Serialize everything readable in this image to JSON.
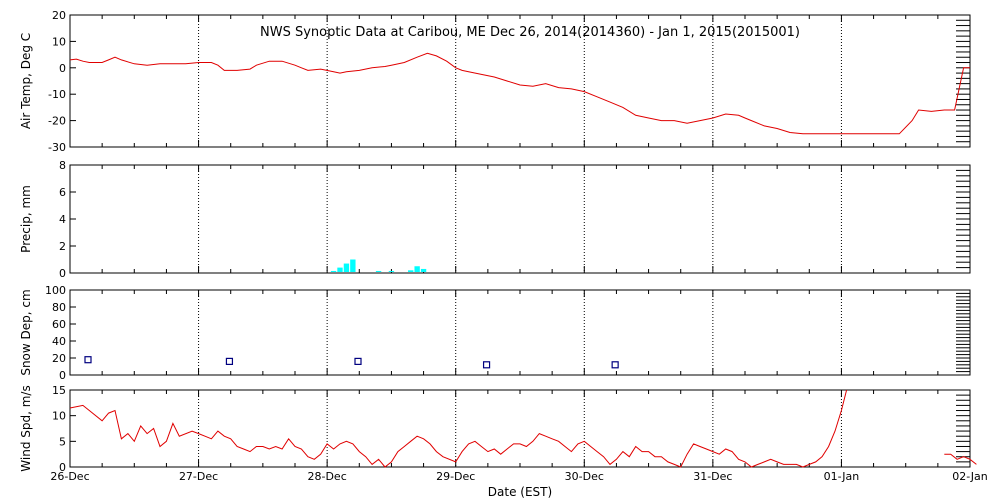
{
  "chart_data": {
    "title": "NWS Synoptic Data at Caribou, ME   Dec 26, 2014(2014360) - Jan  1, 2015(2015001)",
    "xlabel": "Date (EST)",
    "x_range": [
      "2014-12-26",
      "2015-01-02"
    ],
    "x_ticks": [
      "26-Dec",
      "27-Dec",
      "28-Dec",
      "29-Dec",
      "30-Dec",
      "31-Dec",
      "01-Jan",
      "02-Jan"
    ],
    "grid": "dotted vertical at each day",
    "colors": {
      "line": "#e00000",
      "precip": "#00ffff",
      "snow": "#000080"
    },
    "panels": [
      {
        "id": "air-temp",
        "type": "line",
        "ylabel": "Air Temp, Deg C",
        "ylim": [
          -30,
          20
        ],
        "yticks": [
          20,
          10,
          0,
          -10,
          -20,
          -30
        ],
        "points": [
          [
            0,
            3
          ],
          [
            0.05,
            3.3
          ],
          [
            0.1,
            2.5
          ],
          [
            0.15,
            2
          ],
          [
            0.25,
            2
          ],
          [
            0.3,
            3
          ],
          [
            0.35,
            4
          ],
          [
            0.4,
            3
          ],
          [
            0.5,
            1.5
          ],
          [
            0.6,
            1
          ],
          [
            0.7,
            1.5
          ],
          [
            0.75,
            1.5
          ],
          [
            0.8,
            1.5
          ],
          [
            0.9,
            1.5
          ],
          [
            1.0,
            2
          ],
          [
            1.1,
            2
          ],
          [
            1.15,
            1
          ],
          [
            1.2,
            -1
          ],
          [
            1.25,
            -1
          ],
          [
            1.3,
            -1
          ],
          [
            1.4,
            -0.5
          ],
          [
            1.45,
            1
          ],
          [
            1.55,
            2.5
          ],
          [
            1.65,
            2.5
          ],
          [
            1.75,
            1
          ],
          [
            1.8,
            0
          ],
          [
            1.85,
            -1
          ],
          [
            1.95,
            -0.5
          ],
          [
            2.05,
            -1.5
          ],
          [
            2.1,
            -2
          ],
          [
            2.15,
            -1.5
          ],
          [
            2.25,
            -1
          ],
          [
            2.35,
            0
          ],
          [
            2.45,
            0.5
          ],
          [
            2.5,
            1
          ],
          [
            2.6,
            2
          ],
          [
            2.7,
            4
          ],
          [
            2.78,
            5.5
          ],
          [
            2.85,
            4.5
          ],
          [
            2.93,
            2.5
          ],
          [
            3.0,
            0
          ],
          [
            3.05,
            -1
          ],
          [
            3.1,
            -1.5
          ],
          [
            3.2,
            -2.5
          ],
          [
            3.3,
            -3.5
          ],
          [
            3.4,
            -5
          ],
          [
            3.5,
            -6.5
          ],
          [
            3.6,
            -7
          ],
          [
            3.7,
            -6
          ],
          [
            3.8,
            -7.5
          ],
          [
            3.9,
            -8
          ],
          [
            4.0,
            -9
          ],
          [
            4.1,
            -11
          ],
          [
            4.2,
            -13
          ],
          [
            4.3,
            -15
          ],
          [
            4.4,
            -18
          ],
          [
            4.5,
            -19
          ],
          [
            4.6,
            -20
          ],
          [
            4.7,
            -20
          ],
          [
            4.8,
            -21
          ],
          [
            4.9,
            -20
          ],
          [
            5.0,
            -19
          ],
          [
            5.1,
            -17.5
          ],
          [
            5.2,
            -18
          ],
          [
            5.25,
            -19
          ],
          [
            5.3,
            -20
          ],
          [
            5.4,
            -22
          ],
          [
            5.5,
            -23
          ],
          [
            5.6,
            -24.5
          ],
          [
            5.7,
            -25
          ],
          [
            5.8,
            -25
          ],
          [
            6.0,
            -25
          ],
          [
            6.3,
            -25
          ],
          [
            6.45,
            -25
          ],
          [
            6.55,
            -20
          ],
          [
            6.6,
            -16
          ],
          [
            6.7,
            -16.5
          ],
          [
            6.8,
            -16
          ],
          [
            6.88,
            -16
          ],
          [
            6.95,
            0
          ],
          [
            7.0,
            0
          ]
        ]
      },
      {
        "id": "precip",
        "type": "bar",
        "ylabel": "Precip, mm",
        "ylim": [
          0,
          8
        ],
        "yticks": [
          8,
          6,
          4,
          2,
          0
        ],
        "bars": [
          [
            2.05,
            0.15
          ],
          [
            2.1,
            0.4
          ],
          [
            2.15,
            0.7
          ],
          [
            2.2,
            1.0
          ],
          [
            2.4,
            0.15
          ],
          [
            2.5,
            0.15
          ],
          [
            2.65,
            0.2
          ],
          [
            2.7,
            0.5
          ],
          [
            2.75,
            0.3
          ]
        ]
      },
      {
        "id": "snow-depth",
        "type": "scatter",
        "ylabel": "Snow Dep, cm",
        "ylim": [
          0,
          100
        ],
        "yticks": [
          100,
          80,
          60,
          40,
          20,
          0
        ],
        "points": [
          [
            0.14,
            18
          ],
          [
            1.24,
            16
          ],
          [
            2.24,
            16
          ],
          [
            3.24,
            12
          ],
          [
            4.24,
            12
          ]
        ]
      },
      {
        "id": "wind-speed",
        "type": "line",
        "ylabel": "Wind Spd, m/s",
        "ylim": [
          0,
          15
        ],
        "yticks": [
          15,
          10,
          5,
          0
        ],
        "segments": [
          [
            [
              0,
              11.5
            ],
            [
              0.1,
              12
            ],
            [
              0.15,
              11
            ],
            [
              0.25,
              9
            ],
            [
              0.3,
              10.5
            ],
            [
              0.35,
              11
            ],
            [
              0.4,
              5.5
            ],
            [
              0.45,
              6.5
            ],
            [
              0.5,
              5
            ],
            [
              0.55,
              8
            ],
            [
              0.6,
              6.5
            ],
            [
              0.65,
              7.5
            ],
            [
              0.7,
              4
            ],
            [
              0.75,
              5
            ],
            [
              0.8,
              8.5
            ],
            [
              0.85,
              6
            ],
            [
              0.95,
              7
            ],
            [
              1.0,
              6.5
            ],
            [
              1.05,
              6
            ],
            [
              1.1,
              5.5
            ],
            [
              1.15,
              7
            ],
            [
              1.2,
              6
            ],
            [
              1.25,
              5.5
            ],
            [
              1.3,
              4
            ],
            [
              1.35,
              3.5
            ],
            [
              1.4,
              3
            ],
            [
              1.45,
              4
            ],
            [
              1.5,
              4
            ],
            [
              1.55,
              3.5
            ],
            [
              1.6,
              4
            ],
            [
              1.65,
              3.5
            ],
            [
              1.7,
              5.5
            ],
            [
              1.75,
              4
            ],
            [
              1.8,
              3.5
            ],
            [
              1.85,
              2
            ],
            [
              1.9,
              1.5
            ],
            [
              1.95,
              2.5
            ],
            [
              2.0,
              4.5
            ],
            [
              2.05,
              3.5
            ],
            [
              2.1,
              4.5
            ],
            [
              2.15,
              5
            ],
            [
              2.2,
              4.5
            ],
            [
              2.25,
              3
            ],
            [
              2.3,
              2
            ],
            [
              2.35,
              0.5
            ],
            [
              2.4,
              1.5
            ],
            [
              2.45,
              0
            ],
            [
              2.5,
              1
            ],
            [
              2.55,
              3
            ],
            [
              2.6,
              4
            ],
            [
              2.65,
              5
            ],
            [
              2.7,
              6
            ],
            [
              2.75,
              5.5
            ],
            [
              2.8,
              4.5
            ],
            [
              2.85,
              3
            ],
            [
              2.9,
              2
            ],
            [
              3.0,
              1
            ],
            [
              3.05,
              3
            ],
            [
              3.1,
              4.5
            ],
            [
              3.15,
              5
            ],
            [
              3.2,
              4
            ],
            [
              3.25,
              3
            ],
            [
              3.3,
              3.5
            ],
            [
              3.35,
              2.5
            ],
            [
              3.4,
              3.5
            ],
            [
              3.45,
              4.5
            ],
            [
              3.5,
              4.5
            ],
            [
              3.55,
              4
            ],
            [
              3.6,
              5
            ],
            [
              3.65,
              6.5
            ],
            [
              3.7,
              6
            ],
            [
              3.75,
              5.5
            ],
            [
              3.8,
              5
            ],
            [
              3.85,
              4
            ],
            [
              3.9,
              3
            ],
            [
              3.95,
              4.5
            ],
            [
              4.0,
              5
            ],
            [
              4.05,
              4
            ],
            [
              4.1,
              3
            ],
            [
              4.15,
              2
            ],
            [
              4.2,
              0.5
            ],
            [
              4.25,
              1.5
            ],
            [
              4.3,
              3
            ],
            [
              4.35,
              2
            ],
            [
              4.4,
              4
            ],
            [
              4.45,
              3
            ],
            [
              4.5,
              3
            ],
            [
              4.55,
              2
            ],
            [
              4.6,
              2
            ],
            [
              4.65,
              1
            ],
            [
              4.7,
              0.5
            ],
            [
              4.75,
              0
            ],
            [
              4.8,
              2.5
            ],
            [
              4.85,
              4.5
            ],
            [
              4.9,
              4
            ],
            [
              4.95,
              3.5
            ],
            [
              5.0,
              3
            ],
            [
              5.05,
              2.5
            ],
            [
              5.1,
              3.5
            ],
            [
              5.15,
              3
            ],
            [
              5.2,
              1.5
            ],
            [
              5.25,
              1
            ],
            [
              5.3,
              0
            ],
            [
              5.35,
              0.5
            ],
            [
              5.4,
              1
            ],
            [
              5.45,
              1.5
            ],
            [
              5.5,
              1
            ],
            [
              5.55,
              0.5
            ],
            [
              5.6,
              0.5
            ],
            [
              5.65,
              0.5
            ],
            [
              5.7,
              0
            ],
            [
              5.75,
              0.5
            ],
            [
              5.8,
              1
            ],
            [
              5.85,
              2
            ],
            [
              5.9,
              4
            ],
            [
              5.95,
              7
            ],
            [
              6.0,
              11
            ],
            [
              6.04,
              15
            ]
          ],
          [
            [
              6.8,
              2.5
            ],
            [
              6.85,
              2.5
            ],
            [
              6.9,
              1.5
            ],
            [
              6.95,
              2
            ],
            [
              7.0,
              1.5
            ],
            [
              7.05,
              0.5
            ]
          ]
        ]
      }
    ]
  }
}
